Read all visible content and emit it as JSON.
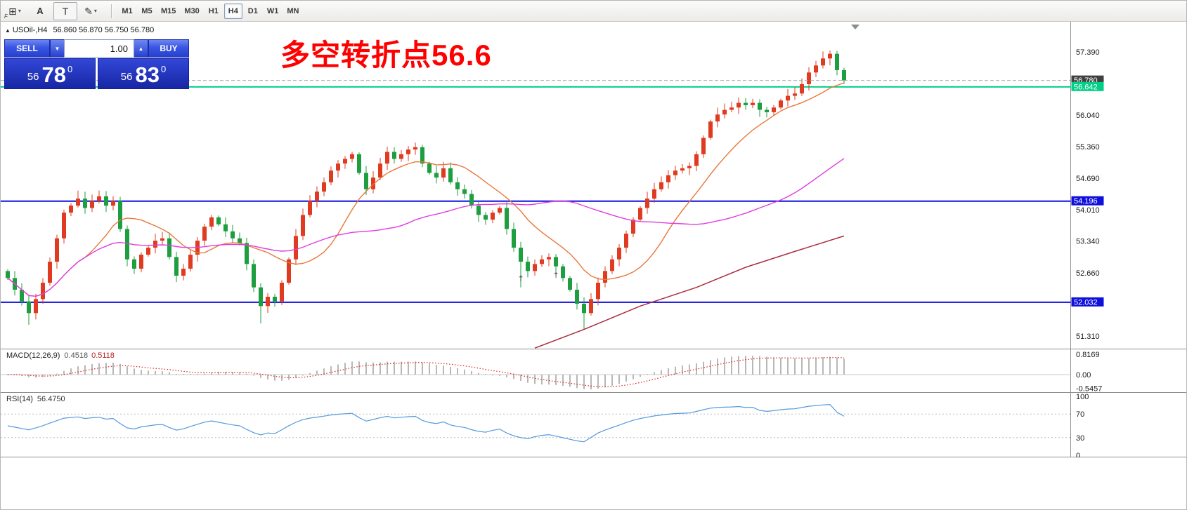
{
  "toolbar": {
    "dropdown_glyph": "▾",
    "tools": [
      {
        "name": "windows-grid",
        "glyph": "⊞",
        "sub": "F"
      },
      {
        "name": "text-a",
        "glyph": "A"
      },
      {
        "name": "text-label",
        "glyph": "T"
      },
      {
        "name": "draw-shapes",
        "glyph": "✎"
      }
    ],
    "timeframes": [
      {
        "label": "M1",
        "active": false
      },
      {
        "label": "M5",
        "active": false
      },
      {
        "label": "M15",
        "active": false
      },
      {
        "label": "M30",
        "active": false
      },
      {
        "label": "H1",
        "active": false
      },
      {
        "label": "H4",
        "active": true
      },
      {
        "label": "D1",
        "active": false
      },
      {
        "label": "W1",
        "active": false
      },
      {
        "label": "MN",
        "active": false
      }
    ]
  },
  "chart_header": {
    "expand_icon": "▲",
    "symbol": "USOil-,H4",
    "ohlc": "56.860 56.870 56.750 56.780"
  },
  "trade_panel": {
    "sell_label": "SELL",
    "buy_label": "BUY",
    "volume": "1.00",
    "dropdown_glyph": "▼",
    "up_glyph": "▲",
    "sell_price": {
      "prefix": "56",
      "big": "78",
      "sup": "0"
    },
    "buy_price": {
      "prefix": "56",
      "big": "83",
      "sup": "0"
    }
  },
  "annotation": {
    "text": "多空转折点56.6",
    "color": "#ff0000"
  },
  "chart_data": {
    "type": "candlestick",
    "symbol": "USOil-",
    "timeframe": "H4",
    "ohlc_display": "56.860 56.870 56.750 56.780",
    "ylim": [
      51.0,
      57.6
    ],
    "bull_color": "#e03b20",
    "bear_color": "#1d9e3f",
    "first_open": 52.7,
    "closes": [
      52.55,
      52.3,
      52.05,
      51.8,
      52.1,
      52.45,
      52.9,
      53.4,
      53.95,
      54.1,
      54.25,
      54.05,
      54.2,
      54.3,
      54.1,
      54.2,
      53.6,
      52.95,
      52.75,
      53.05,
      53.2,
      53.35,
      53.4,
      53.0,
      52.6,
      52.75,
      53.05,
      53.35,
      53.65,
      53.85,
      53.7,
      53.55,
      53.4,
      53.3,
      52.85,
      52.35,
      51.95,
      52.15,
      52.05,
      52.45,
      52.95,
      53.45,
      53.9,
      54.2,
      54.4,
      54.6,
      54.85,
      55.0,
      55.1,
      55.2,
      54.8,
      54.45,
      54.7,
      55.0,
      55.25,
      55.1,
      55.2,
      55.3,
      55.35,
      55.0,
      54.8,
      54.7,
      54.9,
      54.6,
      54.45,
      54.35,
      54.1,
      53.9,
      53.8,
      53.95,
      54.05,
      53.6,
      53.2,
      52.9,
      52.7,
      52.85,
      52.95,
      53.0,
      52.8,
      52.55,
      52.3,
      52.0,
      51.8,
      52.1,
      52.45,
      52.7,
      52.95,
      53.2,
      53.5,
      53.8,
      54.05,
      54.25,
      54.45,
      54.6,
      54.75,
      54.85,
      54.9,
      54.95,
      55.2,
      55.55,
      55.9,
      56.05,
      56.15,
      56.2,
      56.3,
      56.25,
      56.3,
      56.15,
      56.1,
      56.2,
      56.35,
      56.45,
      56.5,
      56.7,
      56.95,
      57.1,
      57.25,
      57.35,
      57.0,
      56.78
    ],
    "wick_overrides": {
      "lows": {
        "3": 51.55,
        "36": 51.58,
        "73": 52.35,
        "82": 51.45
      },
      "highs": {
        "10": 54.42,
        "58": 55.45,
        "116": 57.4,
        "117": 57.42
      }
    },
    "y_ticks": [
      "57.390",
      "56.040",
      "55.360",
      "54.690",
      "54.010",
      "53.340",
      "52.660",
      "51.310"
    ],
    "hlines": [
      {
        "name": "bid-line",
        "value": 56.78,
        "label": "56.780",
        "color": "#a8a8a8",
        "label_bg": "#404040",
        "label_fg": "#ffffff",
        "style": "dash",
        "width": 1
      },
      {
        "name": "level-56642",
        "value": 56.642,
        "label": "56.642",
        "color": "#00cf87",
        "label_bg": "#00cf87",
        "label_fg": "#ffffff",
        "style": "solid",
        "width": 2
      },
      {
        "name": "level-54196",
        "value": 54.196,
        "label": "54.196",
        "color": "#1010dd",
        "label_bg": "#1010dd",
        "label_fg": "#ffffff",
        "style": "solid",
        "width": 2
      },
      {
        "name": "level-52032",
        "value": 52.032,
        "label": "52.032",
        "color": "#1010dd",
        "label_bg": "#1010dd",
        "label_fg": "#ffffff",
        "style": "solid",
        "width": 2
      }
    ],
    "moving_averages": [
      {
        "name": "fast",
        "type": "sma",
        "period": 12,
        "color": "#e8773a"
      },
      {
        "name": "mid",
        "type": "sma",
        "period": 40,
        "color": "#e03ce0"
      },
      {
        "name": "slow",
        "type": "points",
        "color": "#aa2e3e",
        "points": [
          [
            75,
            51.05
          ],
          [
            82,
            51.45
          ],
          [
            90,
            51.95
          ],
          [
            98,
            52.35
          ],
          [
            105,
            52.78
          ],
          [
            112,
            53.12
          ],
          [
            119,
            53.45
          ]
        ]
      }
    ],
    "markers": [
      {
        "i": 73,
        "price": 52.55,
        "glyph": "†"
      },
      {
        "i": 78,
        "price": 52.62,
        "glyph": "†"
      }
    ],
    "macd": {
      "label": "MACD(12,26,9)",
      "value_main": "0.4518",
      "value_signal": "0.5118",
      "fast": 12,
      "slow": 26,
      "signal": 9,
      "scale_ticks": [
        "0.8169",
        "0.00",
        "-0.5457"
      ],
      "hist_color": "#b8b8b8",
      "signal_color": "#dd2222"
    },
    "rsi": {
      "label": "RSI(14)",
      "value": "56.4750",
      "period": 14,
      "scale_ticks": [
        "100",
        "70",
        "30",
        "0"
      ],
      "levels": [
        70,
        30
      ],
      "color": "#5599dd"
    }
  }
}
